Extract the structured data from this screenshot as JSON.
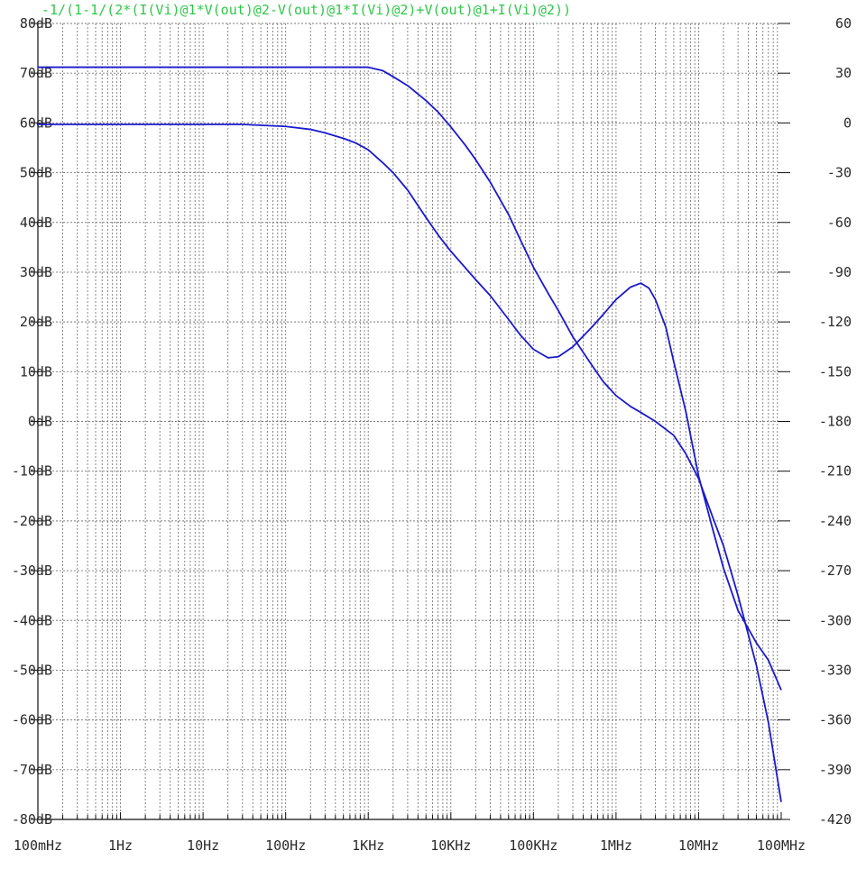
{
  "chart_data": {
    "type": "line",
    "title": "-1/(1-1/(2*(I(Vi)@1*V(out)@2-V(out)@1*I(Vi)@2)+V(out)@1+I(Vi)@2))",
    "title_color": "#2fc84a",
    "trace_color": "#1a1acd",
    "grid_color": "#7a7a7a",
    "x_scale": "log",
    "xlim": [
      0.1,
      100000000
    ],
    "x_ticks": [
      {
        "value": 0.1,
        "label": "100mHz"
      },
      {
        "value": 1,
        "label": "1Hz"
      },
      {
        "value": 10,
        "label": "10Hz"
      },
      {
        "value": 100,
        "label": "100Hz"
      },
      {
        "value": 1000,
        "label": "1KHz"
      },
      {
        "value": 10000,
        "label": "10KHz"
      },
      {
        "value": 100000,
        "label": "100KHz"
      },
      {
        "value": 1000000,
        "label": "1MHz"
      },
      {
        "value": 10000000,
        "label": "10MHz"
      },
      {
        "value": 100000000,
        "label": "100MHz"
      }
    ],
    "ylim_left": [
      -80,
      80
    ],
    "y_ticks_left": [
      {
        "value": 80,
        "label": "80dB"
      },
      {
        "value": 70,
        "label": "70dB"
      },
      {
        "value": 60,
        "label": "60dB"
      },
      {
        "value": 50,
        "label": "50dB"
      },
      {
        "value": 40,
        "label": "40dB"
      },
      {
        "value": 30,
        "label": "30dB"
      },
      {
        "value": 20,
        "label": "20dB"
      },
      {
        "value": 10,
        "label": "10dB"
      },
      {
        "value": 0,
        "label": "0dB"
      },
      {
        "value": -10,
        "label": "-10dB"
      },
      {
        "value": -20,
        "label": "-20dB"
      },
      {
        "value": -30,
        "label": "-30dB"
      },
      {
        "value": -40,
        "label": "-40dB"
      },
      {
        "value": -50,
        "label": "-50dB"
      },
      {
        "value": -60,
        "label": "-60dB"
      },
      {
        "value": -70,
        "label": "-70dB"
      },
      {
        "value": -80,
        "label": "-80dB"
      }
    ],
    "ylim_right": [
      -420,
      60
    ],
    "y_ticks_right": [
      {
        "value": 60,
        "label": "60"
      },
      {
        "value": 30,
        "label": "30"
      },
      {
        "value": 0,
        "label": "0"
      },
      {
        "value": -30,
        "label": "-30"
      },
      {
        "value": -60,
        "label": "-60"
      },
      {
        "value": -90,
        "label": "-90"
      },
      {
        "value": -120,
        "label": "-120"
      },
      {
        "value": -150,
        "label": "-150"
      },
      {
        "value": -180,
        "label": "-180"
      },
      {
        "value": -210,
        "label": "-210"
      },
      {
        "value": -240,
        "label": "-240"
      },
      {
        "value": -270,
        "label": "-270"
      },
      {
        "value": -300,
        "label": "-300"
      },
      {
        "value": -330,
        "label": "-330"
      },
      {
        "value": -360,
        "label": "-360"
      },
      {
        "value": -390,
        "label": "-390"
      },
      {
        "value": -420,
        "label": "-420"
      }
    ],
    "series": [
      {
        "axis": "left",
        "style": "solid",
        "x": [
          0.1,
          1,
          10,
          100,
          1000,
          1500,
          2000,
          3000,
          5000,
          7000,
          10000,
          15000,
          20000,
          30000,
          50000,
          70000,
          100000,
          150000,
          200000,
          300000,
          500000,
          700000,
          1000000,
          1500000,
          2000000,
          3000000,
          5000000,
          7000000,
          10000000,
          15000000,
          20000000,
          30000000,
          50000000,
          70000000,
          100000000
        ],
        "y": [
          71.2,
          71.2,
          71.2,
          71.2,
          71.2,
          70.5,
          69.3,
          67.5,
          64.5,
          62.2,
          59.2,
          55.5,
          52.6,
          48.1,
          41.6,
          36.4,
          31.0,
          25.8,
          22.3,
          17.0,
          11.5,
          8.0,
          5.2,
          3.0,
          1.8,
          0.0,
          -2.8,
          -6.5,
          -11.5,
          -19.5,
          -25.0,
          -35.0,
          -49.0,
          -60.5,
          -76.5
        ]
      },
      {
        "axis": "left",
        "style": "solid",
        "x": [
          0.1,
          1,
          10,
          30,
          100,
          200,
          300,
          500,
          700,
          1000,
          1500,
          2000,
          3000,
          5000,
          7000,
          10000,
          20000,
          30000,
          50000,
          70000,
          100000,
          150000,
          200000,
          300000,
          500000,
          700000,
          1000000,
          1500000,
          2000000,
          2500000,
          3000000,
          4000000,
          5000000,
          7000000,
          10000000,
          15000000,
          20000000,
          30000000,
          50000000,
          70000000,
          100000000
        ],
        "y": [
          59.7,
          59.7,
          59.7,
          59.7,
          59.3,
          58.7,
          58.0,
          56.9,
          56.0,
          54.6,
          52.0,
          50.0,
          46.5,
          41.0,
          37.5,
          34.2,
          28.5,
          25.3,
          20.5,
          17.3,
          14.5,
          12.8,
          13.0,
          15.0,
          18.8,
          21.5,
          24.5,
          27.0,
          27.8,
          26.8,
          24.5,
          19.0,
          12.0,
          2.0,
          -11.0,
          -22.0,
          -29.5,
          -38.0,
          -44.5,
          -48.0,
          -54.0
        ]
      }
    ]
  }
}
